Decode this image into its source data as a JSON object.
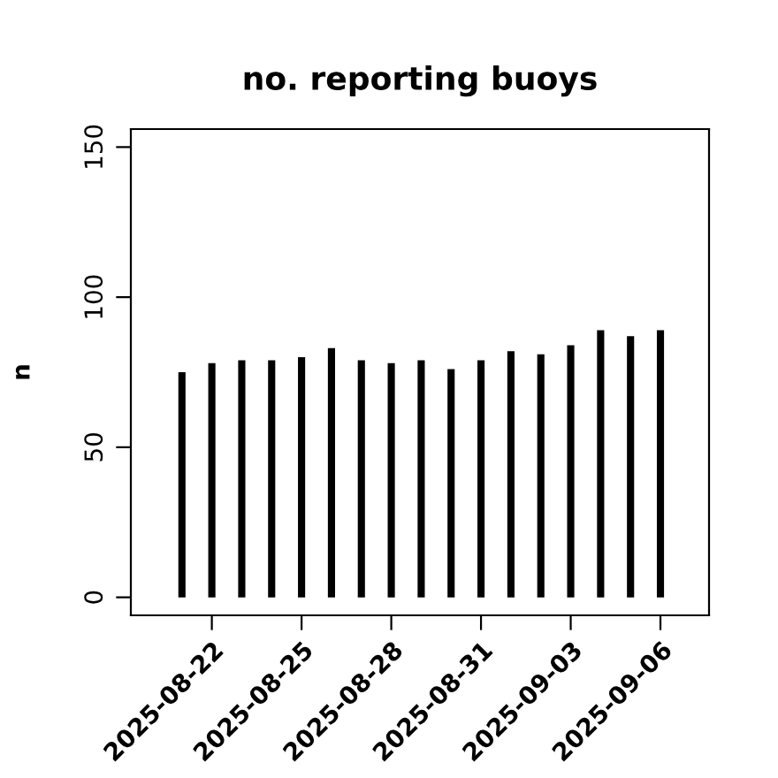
{
  "chart_data": {
    "type": "bar",
    "title": "no. reporting buoys",
    "ylabel": "n",
    "x": [
      "2025-08-21",
      "2025-08-22",
      "2025-08-23",
      "2025-08-24",
      "2025-08-25",
      "2025-08-26",
      "2025-08-27",
      "2025-08-28",
      "2025-08-29",
      "2025-08-30",
      "2025-08-31",
      "2025-09-01",
      "2025-09-02",
      "2025-09-03",
      "2025-09-04",
      "2025-09-05",
      "2025-09-06"
    ],
    "values": [
      75,
      78,
      79,
      79,
      80,
      83,
      79,
      78,
      79,
      76,
      79,
      82,
      81,
      84,
      89,
      87,
      89
    ],
    "color": "#000000",
    "xlim": [
      "2025-08-19T07:00",
      "2025-09-07T15:00"
    ],
    "xticks": [
      {
        "value": "2025-08-22",
        "label": "2025-08-22"
      },
      {
        "value": "2025-08-25",
        "label": "2025-08-25"
      },
      {
        "value": "2025-08-28",
        "label": "2025-08-28"
      },
      {
        "value": "2025-08-31",
        "label": "2025-08-31"
      },
      {
        "value": "2025-09-03",
        "label": "2025-09-03"
      },
      {
        "value": "2025-09-06",
        "label": "2025-09-06"
      }
    ],
    "ylim": [
      -6,
      156
    ],
    "yticks": [
      0,
      50,
      100,
      150
    ],
    "grid": false,
    "legend": false
  }
}
